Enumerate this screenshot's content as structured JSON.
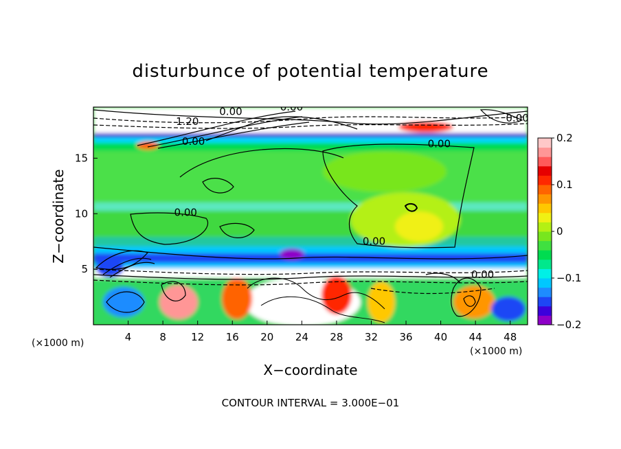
{
  "chart_data": {
    "type": "heatmap",
    "title": "disturbunce of potential temperature",
    "xlabel": "X−coordinate",
    "ylabel": "Z−coordinate",
    "x_unit_left": "(×1000 m)",
    "x_unit_right": "(×1000 m)",
    "xlim": [
      0,
      50
    ],
    "ylim": [
      0,
      19.6
    ],
    "x_ticks": [
      4,
      8,
      12,
      16,
      20,
      24,
      28,
      32,
      36,
      40,
      44,
      48
    ],
    "x_tick_labels": [
      "4",
      "8",
      "12",
      "16",
      "20",
      "24",
      "28",
      "32",
      "36",
      "40",
      "44",
      "48"
    ],
    "y_ticks": [
      5,
      10,
      15
    ],
    "y_tick_labels": [
      "5",
      "10",
      "15"
    ],
    "colorbar": {
      "min": -0.2,
      "max": 0.2,
      "ticks": [
        0.2,
        0.1,
        0,
        -0.1,
        -0.2
      ],
      "tick_labels": [
        "0.2",
        "0.1",
        "0",
        "−0.1",
        "−0.2"
      ],
      "colors": [
        "#8e00c8",
        "#3c00dc",
        "#1e46f5",
        "#1e8cff",
        "#00c8ff",
        "#00f0e6",
        "#00e88c",
        "#00dc50",
        "#40e040",
        "#78e61e",
        "#b4f014",
        "#f0f014",
        "#ffc800",
        "#ff9600",
        "#ff6400",
        "#ff2800",
        "#e60000",
        "#ff5a5a",
        "#ff9696",
        "#ffc8c8"
      ]
    },
    "contour_labels": [
      {
        "text": "0.00",
        "x": 14.5,
        "y": 19.2
      },
      {
        "text": "0.00",
        "x": 21.5,
        "y": 19.6
      },
      {
        "text": "1.20",
        "x": 9.5,
        "y": 18.3
      },
      {
        "text": "0.00",
        "x": 10.2,
        "y": 16.5
      },
      {
        "text": "0.00",
        "x": 38.5,
        "y": 16.3
      },
      {
        "text": "0.00",
        "x": 47.5,
        "y": 18.6
      },
      {
        "text": "0.00",
        "x": 9.3,
        "y": 10.1
      },
      {
        "text": "0.00",
        "x": 31.0,
        "y": 7.5
      },
      {
        "text": "0.00",
        "x": 43.5,
        "y": 4.5
      }
    ],
    "footer": "CONTOUR INTERVAL = 3.000E−01"
  }
}
